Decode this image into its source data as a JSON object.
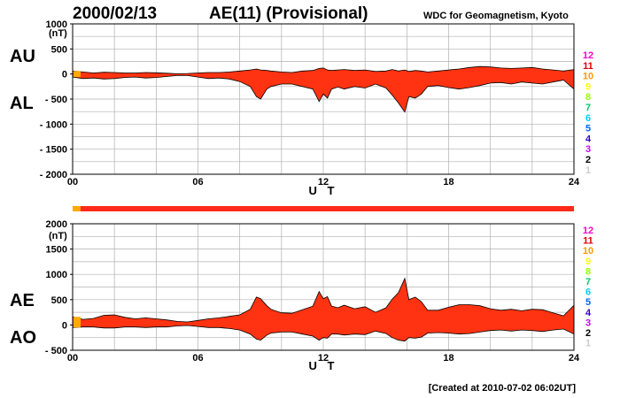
{
  "header": {
    "date": "2000/02/13",
    "title": "AE(11) (Provisional)",
    "institute": "WDC for Geomagnetism, Kyoto"
  },
  "footer": {
    "created": "[Created at 2010-07-02 06:02UT]"
  },
  "colors": {
    "fill": "#ff3311",
    "outline": "#000000",
    "bar_main": "#ff2a1a",
    "bar_start": "#ffaa00",
    "station_scale": [
      "#ff00cc",
      "#dd0000",
      "#ff9900",
      "#ffff00",
      "#99ff00",
      "#00cc66",
      "#00ccff",
      "#0066ff",
      "#3300cc",
      "#cc00ff",
      "#000000",
      "#888888",
      "#cccccc"
    ]
  },
  "station_counts": [
    "12",
    "11",
    "10",
    "9",
    "8",
    "7",
    "6",
    "5",
    "4",
    "3",
    "2",
    "1"
  ],
  "chart_data": [
    {
      "type": "area",
      "panel": "AU/AL",
      "series_labels": [
        "AU",
        "AL"
      ],
      "unit": "(nT)",
      "xlabel": "U T",
      "x_ticks": [
        "00",
        "06",
        "12",
        "18",
        "24"
      ],
      "y_ticks": [
        "1000",
        "500",
        "0",
        "- 500",
        "- 1000",
        "- 1500",
        "- 2000"
      ],
      "xlim": [
        0,
        24
      ],
      "ylim": [
        -2000,
        1000
      ],
      "grid": true,
      "x_hours": [
        0,
        0.5,
        1,
        1.5,
        2,
        2.5,
        3,
        3.5,
        4,
        4.5,
        5,
        5.5,
        6,
        6.5,
        7,
        7.5,
        8,
        8.5,
        8.8,
        9,
        9.3,
        9.5,
        10,
        10.5,
        11,
        11.5,
        11.8,
        12,
        12.2,
        12.4,
        12.7,
        13,
        13.5,
        14,
        14.5,
        15,
        15.3,
        15.6,
        15.9,
        16.1,
        16.4,
        16.7,
        17,
        17.5,
        18,
        18.5,
        19,
        19.5,
        20,
        20.5,
        21,
        21.5,
        22,
        22.5,
        23,
        23.5,
        24
      ],
      "upper": [
        60,
        40,
        20,
        35,
        30,
        20,
        20,
        30,
        25,
        15,
        5,
        10,
        20,
        30,
        30,
        40,
        60,
        80,
        100,
        80,
        70,
        60,
        40,
        30,
        60,
        70,
        110,
        120,
        80,
        70,
        80,
        90,
        70,
        80,
        50,
        60,
        90,
        60,
        80,
        50,
        70,
        60,
        40,
        60,
        80,
        100,
        130,
        150,
        140,
        120,
        110,
        120,
        130,
        100,
        80,
        60,
        90
      ],
      "lower": [
        -60,
        -90,
        -80,
        -100,
        -90,
        -70,
        -60,
        -80,
        -70,
        -50,
        -30,
        -30,
        -60,
        -90,
        -80,
        -100,
        -150,
        -250,
        -450,
        -500,
        -300,
        -250,
        -200,
        -200,
        -250,
        -300,
        -550,
        -400,
        -480,
        -300,
        -260,
        -300,
        -250,
        -280,
        -200,
        -280,
        -420,
        -580,
        -760,
        -450,
        -480,
        -400,
        -250,
        -230,
        -270,
        -300,
        -270,
        -230,
        -180,
        -170,
        -200,
        -160,
        -180,
        -200,
        -160,
        -120,
        -300
      ]
    },
    {
      "type": "area",
      "panel": "AE/AO",
      "series_labels": [
        "AE",
        "AO"
      ],
      "unit": "(nT)",
      "xlabel": "U T",
      "x_ticks": [
        "00",
        "06",
        "12",
        "18",
        "24"
      ],
      "y_ticks": [
        "2000",
        "1500",
        "1000",
        "500",
        "0",
        "- 500"
      ],
      "xlim": [
        0,
        24
      ],
      "ylim": [
        -500,
        2000
      ],
      "grid": true,
      "x_hours": [
        0,
        0.5,
        1,
        1.5,
        2,
        2.5,
        3,
        3.5,
        4,
        4.5,
        5,
        5.5,
        6,
        6.5,
        7,
        7.5,
        8,
        8.5,
        8.8,
        9,
        9.3,
        9.5,
        10,
        10.5,
        11,
        11.5,
        11.8,
        12,
        12.2,
        12.4,
        12.7,
        13,
        13.5,
        14,
        14.5,
        15,
        15.3,
        15.6,
        15.9,
        16.1,
        16.4,
        16.7,
        17,
        17.5,
        18,
        18.5,
        19,
        19.5,
        20,
        20.5,
        21,
        21.5,
        22,
        22.5,
        23,
        23.5,
        24
      ],
      "upper": [
        160,
        110,
        130,
        190,
        200,
        150,
        120,
        140,
        120,
        100,
        70,
        60,
        90,
        120,
        140,
        170,
        200,
        310,
        550,
        520,
        380,
        310,
        240,
        230,
        300,
        370,
        660,
        520,
        560,
        370,
        340,
        390,
        320,
        360,
        250,
        340,
        510,
        640,
        920,
        500,
        550,
        460,
        290,
        290,
        350,
        400,
        400,
        380,
        320,
        290,
        310,
        280,
        310,
        300,
        240,
        180,
        390
      ],
      "lower": [
        -50,
        -40,
        -40,
        -60,
        -60,
        -40,
        -40,
        -50,
        -40,
        -40,
        -20,
        -10,
        -30,
        -50,
        -50,
        -70,
        -100,
        -180,
        -280,
        -300,
        -200,
        -160,
        -140,
        -140,
        -180,
        -220,
        -300,
        -250,
        -260,
        -180,
        -180,
        -200,
        -180,
        -190,
        -120,
        -170,
        -250,
        -300,
        -320,
        -250,
        -260,
        -240,
        -160,
        -150,
        -160,
        -180,
        -170,
        -140,
        -110,
        -100,
        -120,
        -100,
        -110,
        -130,
        -100,
        -80,
        -180
      ]
    }
  ]
}
